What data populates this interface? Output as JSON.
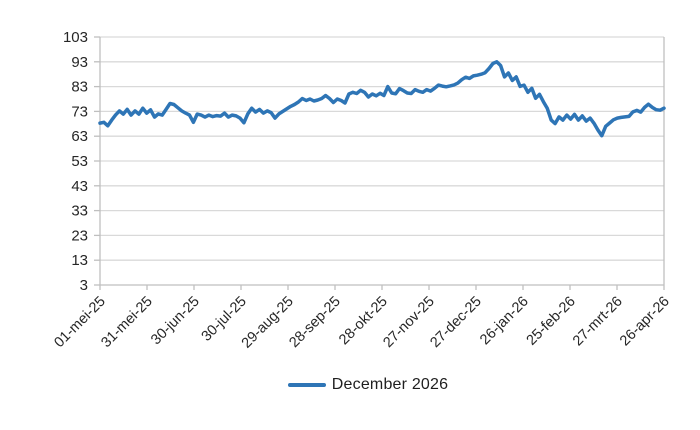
{
  "chart_data": {
    "type": "line",
    "title": "",
    "xlabel": "",
    "ylabel": "",
    "ylim": [
      3,
      103
    ],
    "y_ticks": [
      3,
      13,
      23,
      33,
      43,
      53,
      63,
      73,
      83,
      93,
      103
    ],
    "x_tick_labels": [
      "01-mei-25",
      "31-mei-25",
      "30-jun-25",
      "30-jul-25",
      "29-aug-25",
      "28-sep-25",
      "28-okt-25",
      "27-nov-25",
      "27-dec-25",
      "26-jan-26",
      "25-feb-26",
      "27-mrt-26",
      "26-apr-26"
    ],
    "grid": "horizontal",
    "legend_position": "bottom",
    "colors": {
      "line": "#2E75B6",
      "grid": "#D9D9D9",
      "axis": "#BFBFBF",
      "text": "#262626"
    },
    "series": [
      {
        "name": "December 2026",
        "values": [
          68.3,
          68.6,
          67.2,
          69.5,
          71.6,
          73.2,
          71.9,
          73.8,
          71.5,
          73.2,
          71.9,
          74.3,
          72.3,
          73.6,
          70.7,
          72.0,
          71.5,
          73.8,
          76.2,
          75.8,
          74.5,
          73.2,
          72.3,
          71.5,
          68.6,
          71.9,
          71.5,
          70.7,
          71.5,
          70.9,
          71.3,
          71.1,
          72.3,
          70.7,
          71.5,
          71.2,
          70.3,
          68.4,
          72.0,
          74.3,
          72.7,
          73.8,
          72.3,
          73.2,
          72.5,
          70.3,
          72.0,
          73.0,
          74.0,
          75.0,
          75.8,
          76.8,
          78.2,
          77.4,
          78.0,
          77.2,
          77.6,
          78.2,
          79.4,
          78.2,
          76.6,
          78.0,
          77.4,
          76.4,
          80.0,
          80.7,
          80.2,
          81.5,
          80.7,
          78.8,
          80.0,
          79.3,
          80.3,
          79.4,
          83.0,
          80.4,
          80.1,
          82.2,
          81.4,
          80.4,
          80.2,
          81.8,
          81.1,
          80.7,
          81.8,
          81.2,
          82.3,
          83.6,
          83.2,
          82.9,
          83.3,
          83.7,
          84.4,
          85.8,
          86.8,
          86.3,
          87.3,
          87.6,
          88.0,
          88.6,
          90.3,
          92.3,
          93.0,
          91.5,
          86.9,
          88.5,
          85.5,
          86.9,
          83.1,
          83.6,
          80.7,
          82.3,
          78.3,
          79.9,
          76.9,
          74.2,
          69.5,
          68.1,
          70.8,
          69.5,
          71.5,
          69.9,
          71.8,
          69.5,
          71.2,
          69.1,
          70.3,
          68.2,
          65.5,
          63.2,
          67.0,
          68.3,
          69.6,
          70.3,
          70.6,
          70.8,
          71.0,
          72.8,
          73.4,
          72.7,
          74.6,
          75.9,
          74.6,
          73.7,
          73.5,
          74.3
        ]
      }
    ]
  },
  "legend": {
    "label": "December 2026"
  }
}
